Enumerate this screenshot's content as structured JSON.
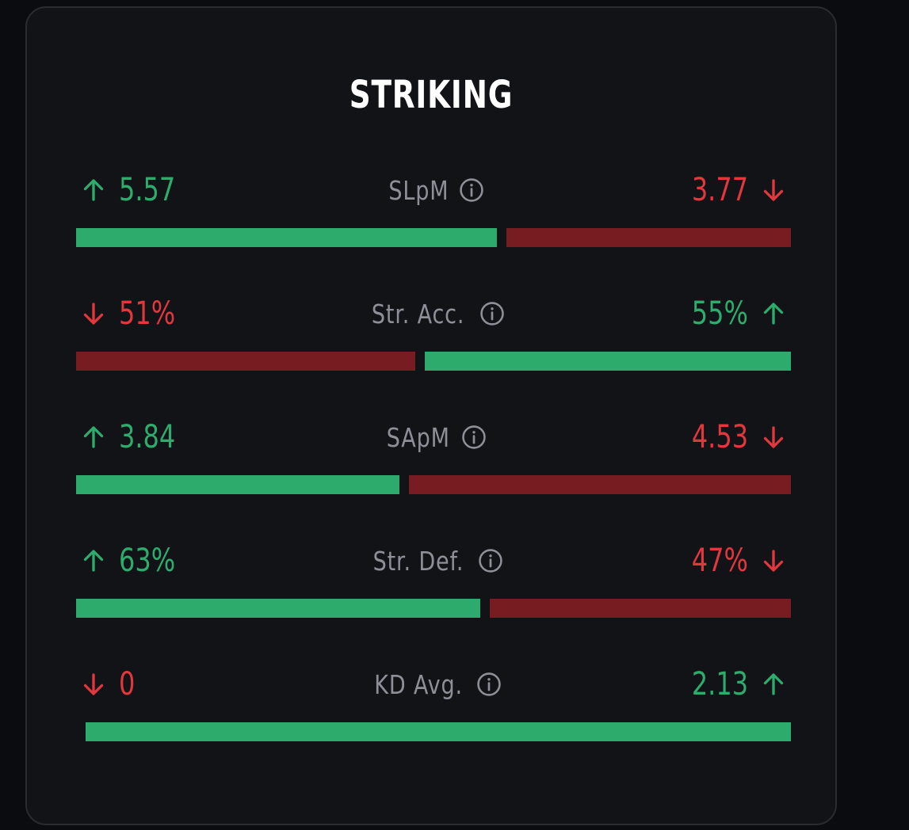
{
  "card": {
    "title": "STRIKING"
  },
  "colors": {
    "better_text": "#2eac6d",
    "worse_text": "#e2373d",
    "better_bar": "#2cab6d",
    "worse_bar": "#771c20",
    "label": "#8d9099",
    "card_bg": "#121317"
  },
  "stats": [
    {
      "label": "SLpM",
      "info_icon": "info-icon",
      "left": {
        "value": "5.57",
        "direction": "up",
        "status": "better"
      },
      "right": {
        "value": "3.77",
        "direction": "down",
        "status": "worse"
      }
    },
    {
      "label": "Str. Acc.",
      "info_icon": "info-icon",
      "left": {
        "value": "51%",
        "direction": "down",
        "status": "worse"
      },
      "right": {
        "value": "55%",
        "direction": "up",
        "status": "better"
      }
    },
    {
      "label": "SApM",
      "info_icon": "info-icon",
      "left": {
        "value": "3.84",
        "direction": "up",
        "status": "better"
      },
      "right": {
        "value": "4.53",
        "direction": "down",
        "status": "worse"
      }
    },
    {
      "label": "Str. Def.",
      "info_icon": "info-icon",
      "left": {
        "value": "63%",
        "direction": "up",
        "status": "better"
      },
      "right": {
        "value": "47%",
        "direction": "down",
        "status": "worse"
      }
    },
    {
      "label": "KD Avg.",
      "info_icon": "info-icon",
      "left": {
        "value": "0",
        "direction": "down",
        "status": "worse"
      },
      "right": {
        "value": "2.13",
        "direction": "up",
        "status": "better"
      }
    }
  ]
}
